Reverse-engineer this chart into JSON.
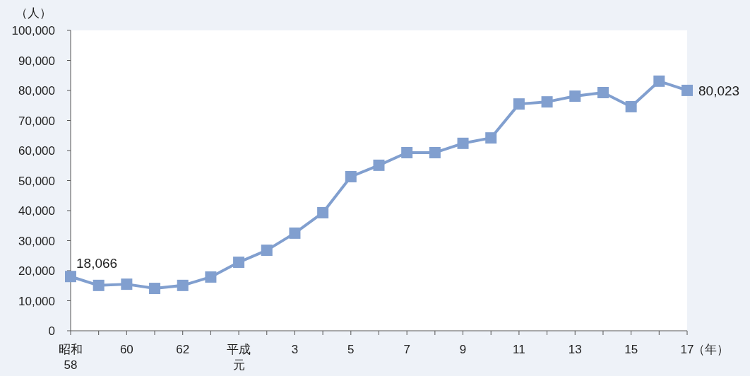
{
  "chart_data": {
    "type": "line",
    "xlabel": "（年）",
    "ylabel": "（人）",
    "categories": [
      "昭和58",
      null,
      "60",
      null,
      "62",
      null,
      "平成元",
      null,
      "3",
      null,
      "5",
      null,
      "7",
      null,
      "9",
      null,
      "11",
      null,
      "13",
      null,
      "15",
      null,
      "17"
    ],
    "series": [
      {
        "color": "#819fcf",
        "values": [
          18066,
          15100,
          15500,
          14100,
          15100,
          17900,
          22800,
          26800,
          32500,
          39300,
          51300,
          55100,
          59300,
          59300,
          62400,
          64200,
          75500,
          76200,
          78100,
          79300,
          74600,
          83100,
          80023
        ],
        "value_labels": [
          "18,066",
          null,
          null,
          null,
          null,
          null,
          null,
          null,
          null,
          null,
          null,
          null,
          null,
          null,
          null,
          null,
          null,
          null,
          null,
          null,
          null,
          null,
          "80,023"
        ]
      }
    ],
    "ylim": [
      0,
      100000
    ],
    "yticks": [
      {
        "value": 0,
        "label": "0"
      },
      {
        "value": 10000,
        "label": "10,000"
      },
      {
        "value": 20000,
        "label": "20,000"
      },
      {
        "value": 30000,
        "label": "30,000"
      },
      {
        "value": 40000,
        "label": "40,000"
      },
      {
        "value": 50000,
        "label": "50,000"
      },
      {
        "value": 60000,
        "label": "60,000"
      },
      {
        "value": 70000,
        "label": "70,000"
      },
      {
        "value": 80000,
        "label": "80,000"
      },
      {
        "value": 90000,
        "label": "90,000"
      },
      {
        "value": 100000,
        "label": "100,000"
      }
    ],
    "marker": "square",
    "line_style": "solid",
    "grid": false
  }
}
